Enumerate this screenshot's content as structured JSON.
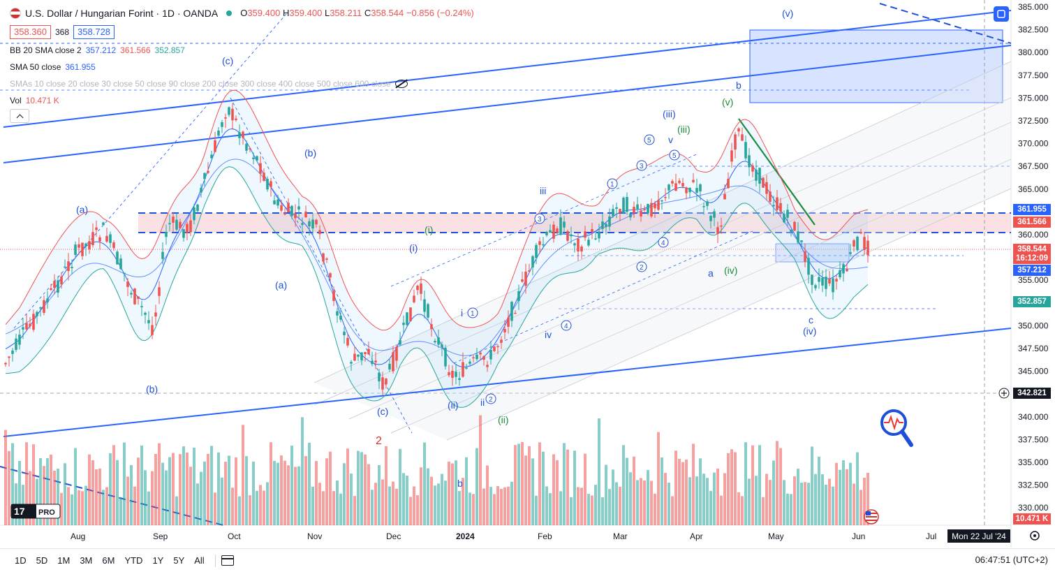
{
  "header": {
    "symbol_title": "U.S. Dollar / Hungarian Forint · 1D · OANDA",
    "ohlc": {
      "o_label": "O",
      "o": "359.400",
      "h_label": "H",
      "h": "359.400",
      "l_label": "L",
      "l": "358.211",
      "c_label": "C",
      "c": "358.544",
      "change": "−0.856 (−0.24%)"
    },
    "bid": "358.360",
    "spread": "368",
    "ask": "358.728"
  },
  "indicators": [
    {
      "name": "BB 20 SMA close 2",
      "v1": "357.212",
      "v2": "361.566",
      "v3": "352.857"
    },
    {
      "name": "SMA 50 close",
      "v1": "361.955"
    },
    {
      "name": "SMAs 10 close 20 close 30 close 50 close 90 close 200 close 300 close 400 close 500 close 600 close"
    },
    {
      "name": "Vol",
      "v1": "10.471 K"
    }
  ],
  "price_axis": {
    "ticks": [
      "385.000",
      "382.500",
      "380.000",
      "377.500",
      "375.000",
      "372.500",
      "370.000",
      "367.500",
      "365.000",
      "362.500",
      "360.000",
      "357.500",
      "355.000",
      "352.500",
      "350.000",
      "347.500",
      "345.000",
      "342.500",
      "340.000",
      "337.500",
      "335.000",
      "332.500",
      "330.000"
    ],
    "badges": {
      "sma50": "361.955",
      "bb_upper": "361.566",
      "last": "358.544",
      "countdown": "16:12:09",
      "bb_basis": "357.212",
      "bb_lower": "352.857",
      "crosshair": "342.821",
      "volume": "10.471 K"
    }
  },
  "time_axis": {
    "labels": [
      "Aug",
      "Sep",
      "Oct",
      "Nov",
      "Dec",
      "2024",
      "Feb",
      "Mar",
      "Apr",
      "May",
      "Jun",
      "Jul"
    ],
    "cursor_date": "Mon 22 Jul '24"
  },
  "wave_labels": [
    "(a)",
    "(b)",
    "(c)",
    "(b)",
    "(a)",
    "(c)",
    "(i)",
    "(i)",
    "(ii)",
    "(ii)",
    "(iii)",
    "(iii)",
    "(iv)",
    "(iv)",
    "(v)",
    "(v)",
    "iii",
    "iv",
    "ii",
    "i",
    "v",
    "a",
    "b",
    "c",
    "2",
    "b"
  ],
  "wave_circled": [
    "1",
    "2",
    "3",
    "4",
    "5"
  ],
  "bottom_bar": {
    "timeframes": [
      "1D",
      "5D",
      "1M",
      "3M",
      "6M",
      "YTD",
      "1Y",
      "5Y",
      "All"
    ],
    "clock": "06:47:51 (UTC+2)"
  },
  "colors": {
    "up": "#26a69a",
    "down": "#ef5350",
    "trendline": "#2962ff",
    "bb_upper": "#ef5350",
    "bb_lower": "#26a69a",
    "wave_blue": "#1e4fd8",
    "wave_green": "#1b8a3a"
  },
  "icons": [
    "tradingview-logo",
    "fullscreen-icon",
    "eye-crossed-icon",
    "chevron-up-icon",
    "settings-icon",
    "calendar-range-icon",
    "plus-circle-icon",
    "pulse-magnifier-icon",
    "us-flag-icon"
  ]
}
